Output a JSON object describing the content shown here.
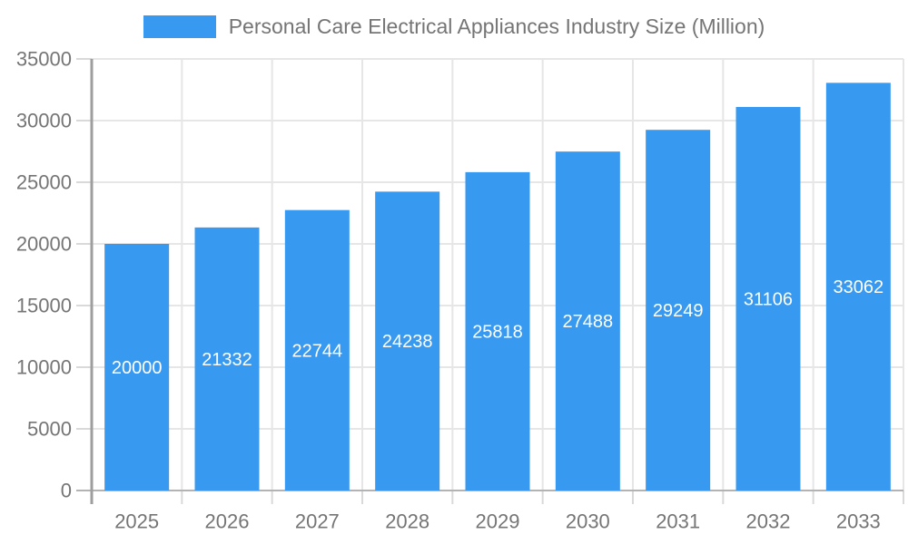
{
  "chart_data": {
    "type": "bar",
    "title": "Personal Care Electrical Appliances Industry Size (Million)",
    "categories": [
      "2025",
      "2026",
      "2027",
      "2028",
      "2029",
      "2030",
      "2031",
      "2032",
      "2033"
    ],
    "values": [
      20000,
      21332,
      22744,
      24238,
      25818,
      27488,
      29249,
      31106,
      33062
    ],
    "xlabel": "",
    "ylabel": "",
    "ylim": [
      0,
      35000
    ],
    "ytick_step": 5000,
    "ytick_labels": [
      "0",
      "5000",
      "10000",
      "15000",
      "20000",
      "25000",
      "30000",
      "35000"
    ],
    "grid": true,
    "legend_position": "top",
    "bar_color": "#3899F0",
    "value_label_color": "#ffffff",
    "text_color": "#757575",
    "grid_color": "#e6e6e6",
    "tick_color": "#d9d9d9",
    "yaxis_color": "#9e9e9e",
    "xaxis_color": "#b3b3b3"
  }
}
